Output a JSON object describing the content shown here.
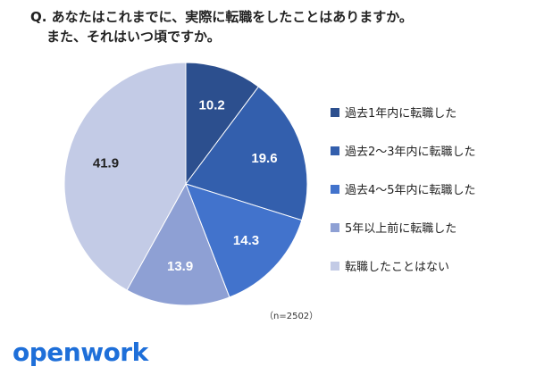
{
  "question": {
    "line1": "Q. あなたはこれまでに、実際に転職をしたことはありますか。",
    "line2": "また、それはいつ頃ですか。"
  },
  "note": "（n=2502）",
  "brand": {
    "text": "openwork",
    "color": "#1e6fd9"
  },
  "chart_data": {
    "type": "pie",
    "title": "",
    "start_angle_deg": 0,
    "direction": "clockwise",
    "legend_position": "right",
    "slices": [
      {
        "label": "過去1年内に転職した",
        "value": 10.2,
        "color": "#2c4f8e",
        "text_color": "#ffffff"
      },
      {
        "label": "過去2〜3年内に転職した",
        "value": 19.6,
        "color": "#335fad",
        "text_color": "#ffffff"
      },
      {
        "label": "過去4〜5年内に転職した",
        "value": 14.3,
        "color": "#4273cc",
        "text_color": "#ffffff"
      },
      {
        "label": "5年以上前に転職した",
        "value": 13.9,
        "color": "#8ea0d4",
        "text_color": "#ffffff"
      },
      {
        "label": "転職したことはない",
        "value": 41.9,
        "color": "#c3cbe6",
        "text_color": "#222222"
      }
    ]
  }
}
